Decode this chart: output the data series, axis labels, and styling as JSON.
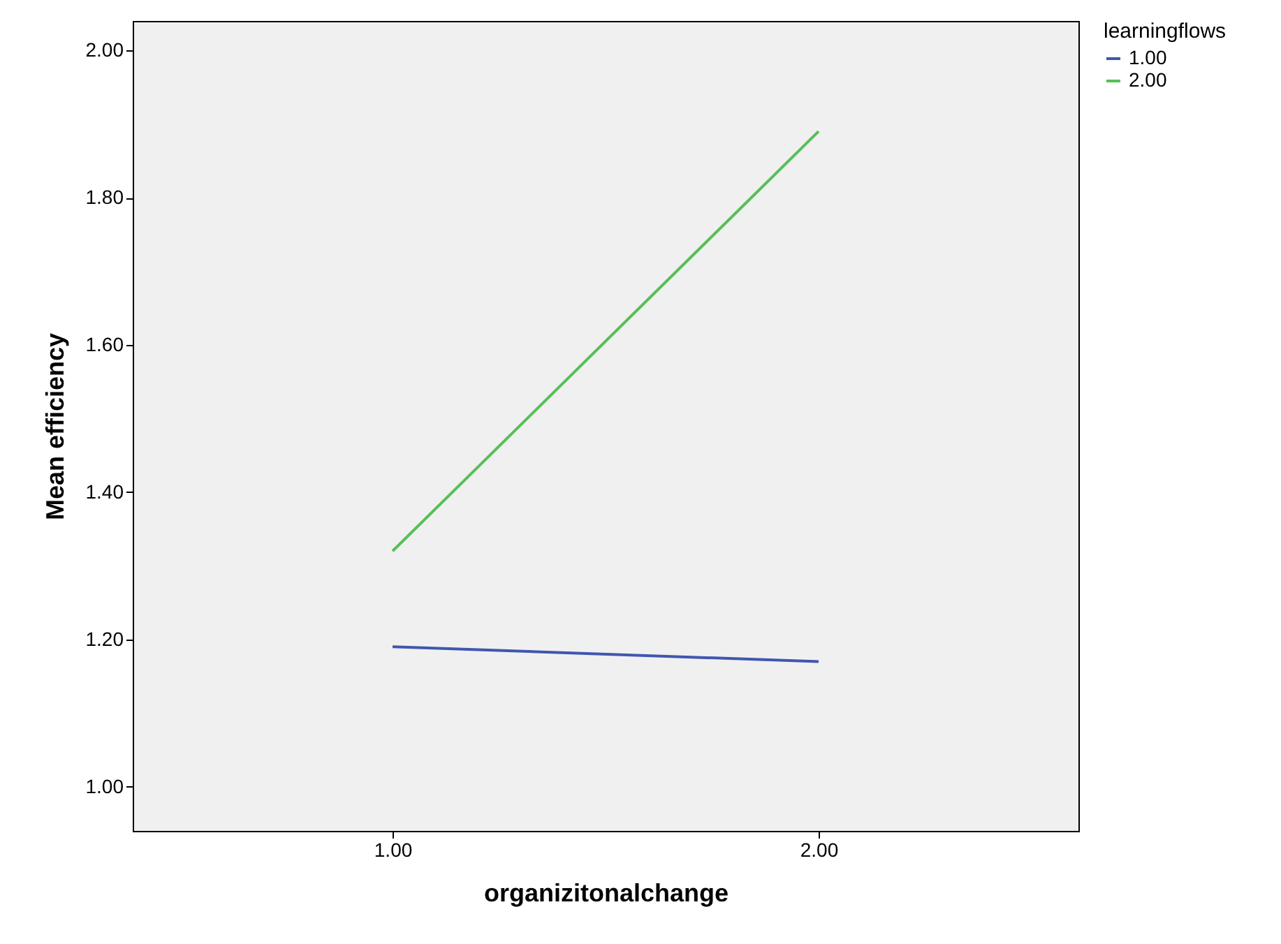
{
  "chart_data": {
    "type": "line",
    "xlabel": "organizitonalchange",
    "ylabel": "Mean efficiency",
    "legend_title": "learningflows",
    "categories": [
      "1.00",
      "2.00"
    ],
    "series": [
      {
        "name": "1.00",
        "color": "#3f57b0",
        "values": [
          1.19,
          1.17
        ]
      },
      {
        "name": "2.00",
        "color": "#57bf57",
        "values": [
          1.32,
          1.89
        ]
      }
    ],
    "ylim": [
      0.94,
      2.04
    ],
    "yticks": [
      {
        "value": 1,
        "label": "1.00"
      },
      {
        "value": 1.2,
        "label": "1.20"
      },
      {
        "value": 1.4,
        "label": "1.40"
      },
      {
        "value": 1.6,
        "label": "1.60"
      },
      {
        "value": 1.8,
        "label": "1.80"
      },
      {
        "value": 2,
        "label": "2.00"
      }
    ],
    "grid": false,
    "legend": "top right",
    "marker": "none",
    "line_style": "solid"
  }
}
